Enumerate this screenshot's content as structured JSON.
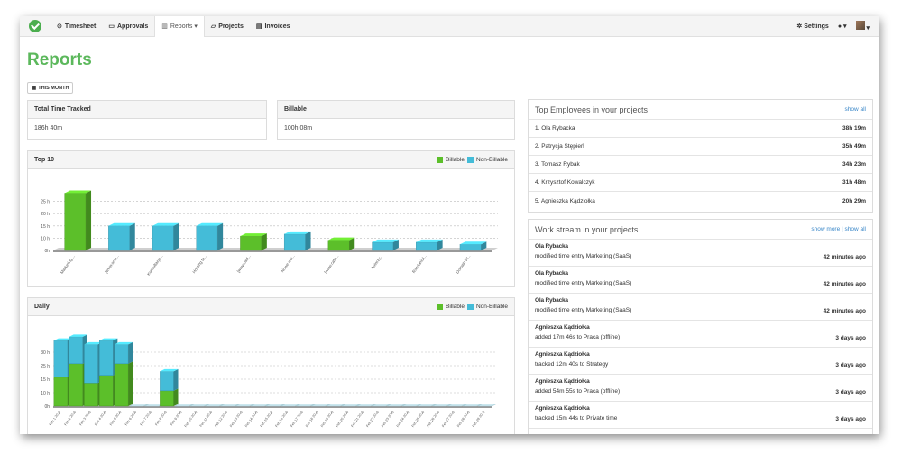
{
  "nav": {
    "items": [
      {
        "label": "Timesheet",
        "icon": "clock-icon"
      },
      {
        "label": "Approvals",
        "icon": "inbox-icon"
      },
      {
        "label": "Reports ▾",
        "icon": "bar-chart-icon"
      },
      {
        "label": "Projects",
        "icon": "folder-icon"
      },
      {
        "label": "Invoices",
        "icon": "document-icon"
      }
    ],
    "settings_label": "Settings",
    "help_label": "▾",
    "user_label": "▾"
  },
  "page": {
    "title": "Reports",
    "period_button": "THIS MONTH"
  },
  "stats": {
    "total": {
      "label": "Total Time Tracked",
      "value": "186h 40m"
    },
    "billable": {
      "label": "Billable",
      "value": "100h 08m"
    }
  },
  "legend": {
    "billable": "Billable",
    "non_billable": "Non-Billable"
  },
  "colors": {
    "billable": "#5cbf2a",
    "non_billable": "#44bcd8",
    "accent": "#5cb85c"
  },
  "chart_data": [
    {
      "type": "bar",
      "title": "Top 10",
      "stacked": true,
      "categories": [
        "Marketing ...",
        "[www.sciu...",
        "Konsultacje...",
        "Hosting ta...",
        "[www.osd...",
        "Nowe ww...",
        "[www.cafe...",
        "Autorzy...",
        "Rozdaniul...",
        "Domain W..."
      ],
      "series": [
        {
          "name": "Billable",
          "values": [
            28,
            0,
            0,
            0,
            7,
            0,
            5,
            0,
            0,
            0
          ]
        },
        {
          "name": "Non-Billable",
          "values": [
            0,
            12,
            12,
            12,
            0,
            8,
            0,
            4,
            4,
            3
          ]
        }
      ],
      "ylim": [
        0,
        30
      ],
      "yticks": [
        "0h",
        "10 h",
        "15 h",
        "20 h",
        "25 h"
      ]
    },
    {
      "type": "bar",
      "title": "Daily",
      "stacked": true,
      "categories": [
        "Feb 1 2016",
        "Feb 2 2016",
        "Feb 3 2016",
        "Feb 4 2016",
        "Feb 5 2016",
        "Feb 6 2016",
        "Feb 7 2016",
        "Feb 8 2016",
        "Feb 9 2016",
        "Feb 10 2016",
        "Feb 11 2016",
        "Feb 12 2016",
        "Feb 13 2016",
        "Feb 14 2016",
        "Feb 15 2016",
        "Feb 16 2016",
        "Feb 17 2016",
        "Feb 18 2016",
        "Feb 19 2016",
        "Feb 20 2016",
        "Feb 21 2016",
        "Feb 22 2016",
        "Feb 23 2016",
        "Feb 24 2016",
        "Feb 25 2016",
        "Feb 26 2016",
        "Feb 27 2016",
        "Feb 28 2016",
        "Feb 29 2016"
      ],
      "series": [
        {
          "name": "Billable",
          "values": [
            15,
            22,
            12,
            16,
            22,
            0,
            0,
            8,
            0,
            0,
            0,
            0,
            0,
            0,
            0,
            0,
            0,
            0,
            0,
            0,
            0,
            0,
            0,
            0,
            0,
            0,
            0,
            0,
            0
          ]
        },
        {
          "name": "Non-Billable",
          "values": [
            19,
            14,
            20,
            18,
            10,
            0,
            0,
            10,
            0,
            0,
            0,
            0,
            0,
            0,
            0,
            0,
            0,
            0,
            0,
            0,
            0,
            0,
            0,
            0,
            0,
            0,
            0,
            0,
            0
          ]
        }
      ],
      "ylim": [
        0,
        35
      ],
      "yticks": [
        "0h",
        "10 h",
        "15 h",
        "25 h",
        "30 h"
      ]
    }
  ],
  "top_employees": {
    "title": "Top Employees in your projects",
    "link": "show all",
    "rows": [
      {
        "name": "1. Ola Rybacka",
        "value": "38h 19m"
      },
      {
        "name": "2. Patrycja Stępień",
        "value": "35h 49m"
      },
      {
        "name": "3. Tomasz Rybak",
        "value": "34h 23m"
      },
      {
        "name": "4. Krzysztof Kowalczyk",
        "value": "31h 48m"
      },
      {
        "name": "5. Agnieszka Kądziołka",
        "value": "20h 29m"
      }
    ]
  },
  "work_stream": {
    "title": "Work stream in your projects",
    "link": "show more | show all",
    "rows": [
      {
        "who": "Ola Rybacka",
        "what": "modified time entry Marketing (SaaS)",
        "when": "42 minutes ago"
      },
      {
        "who": "Ola Rybacka",
        "what": "modified time entry Marketing (SaaS)",
        "when": "42 minutes ago"
      },
      {
        "who": "Ola Rybacka",
        "what": "modified time entry Marketing (SaaS)",
        "when": "42 minutes ago"
      },
      {
        "who": "Agnieszka Kądziołka",
        "what": "added 17m 46s to Praca (offline)",
        "when": "3 days ago"
      },
      {
        "who": "Agnieszka Kądziołka",
        "what": "tracked 12m 40s to Strategy",
        "when": "3 days ago"
      },
      {
        "who": "Agnieszka Kądziołka",
        "what": "added 54m 55s to Praca (offline)",
        "when": "3 days ago"
      },
      {
        "who": "Agnieszka Kądziołka",
        "what": "tracked 15m 44s to Private time",
        "when": "3 days ago"
      }
    ]
  }
}
